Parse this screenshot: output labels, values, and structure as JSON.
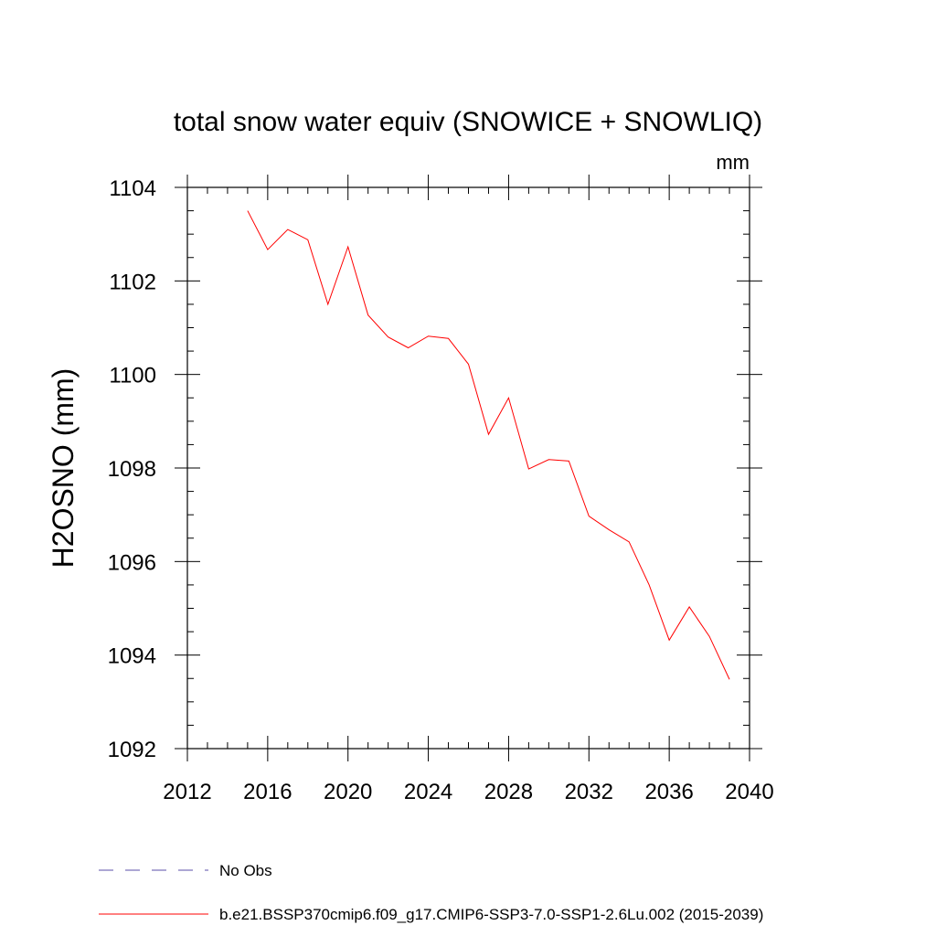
{
  "chart_data": {
    "type": "line",
    "title": "total snow water equiv (SNOWICE + SNOWLIQ)",
    "units": "mm",
    "xlabel": "",
    "ylabel": "H2OSNO  (mm)",
    "xlim": [
      2012,
      2040
    ],
    "ylim": [
      1092,
      1104
    ],
    "xticks": [
      "2012",
      "2016",
      "2020",
      "2024",
      "2028",
      "2032",
      "2036",
      "2040"
    ],
    "yticks": [
      "1092",
      "1094",
      "1096",
      "1098",
      "1100",
      "1102",
      "1104"
    ],
    "grid": false,
    "legend_position": "bottom-left",
    "legend": [
      {
        "label": "No Obs",
        "color": "#5b4fa8",
        "style": "dashed"
      },
      {
        "label": "b.e21.BSSP370cmip6.f09_g17.CMIP6-SSP3-7.0-SSP1-2.6Lu.002 (2015-2039)",
        "color": "#ff0000",
        "style": "solid"
      }
    ],
    "series": [
      {
        "name": "b.e21.BSSP370cmip6.f09_g17.CMIP6-SSP3-7.0-SSP1-2.6Lu.002 (2015-2039)",
        "color": "#ff0000",
        "x": [
          2015,
          2016,
          2017,
          2018,
          2019,
          2020,
          2021,
          2022,
          2023,
          2024,
          2025,
          2026,
          2027,
          2028,
          2029,
          2030,
          2031,
          2032,
          2033,
          2034,
          2035,
          2036,
          2037,
          2038,
          2039
        ],
        "y": [
          1103.5,
          1102.67,
          1103.1,
          1102.88,
          1101.5,
          1102.73,
          1101.27,
          1100.8,
          1100.57,
          1100.82,
          1100.77,
          1100.22,
          1098.72,
          1099.5,
          1097.98,
          1098.18,
          1098.15,
          1096.97,
          1096.68,
          1096.42,
          1095.5,
          1094.32,
          1095.03,
          1094.4,
          1093.48
        ]
      }
    ]
  }
}
